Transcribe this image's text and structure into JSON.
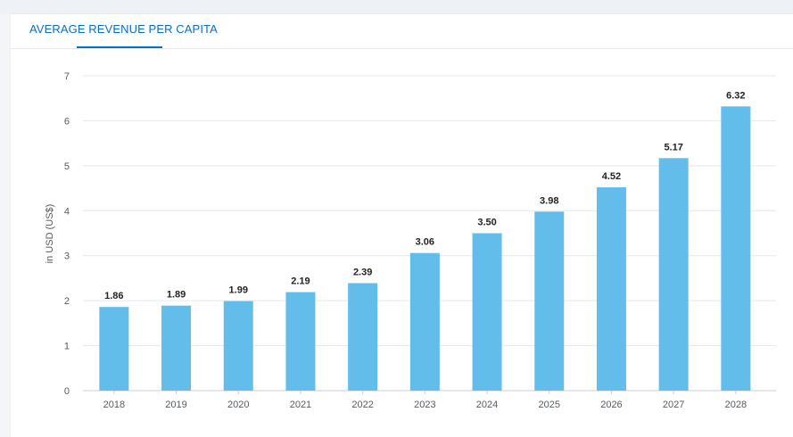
{
  "tab": {
    "title": "AVERAGE REVENUE PER CAPITA"
  },
  "colors": {
    "bar": "#62bdeb",
    "accent": "#0a6ec2",
    "grid": "#e4e7eb",
    "axis": "#c9ced4"
  },
  "chart_data": {
    "type": "bar",
    "title": "AVERAGE REVENUE PER CAPITA",
    "xlabel": "",
    "ylabel": "in USD (US$)",
    "categories": [
      "2018",
      "2019",
      "2020",
      "2021",
      "2022",
      "2023",
      "2024",
      "2025",
      "2026",
      "2027",
      "2028"
    ],
    "values": [
      1.86,
      1.89,
      1.99,
      2.19,
      2.39,
      3.06,
      3.5,
      3.98,
      4.52,
      5.17,
      6.32
    ],
    "value_labels": [
      "1.86",
      "1.89",
      "1.99",
      "2.19",
      "2.39",
      "3.06",
      "3.50",
      "3.98",
      "4.52",
      "5.17",
      "6.32"
    ],
    "ylim": [
      0,
      7
    ],
    "yticks": [
      0,
      1,
      2,
      3,
      4,
      5,
      6,
      7
    ],
    "grid": true
  }
}
